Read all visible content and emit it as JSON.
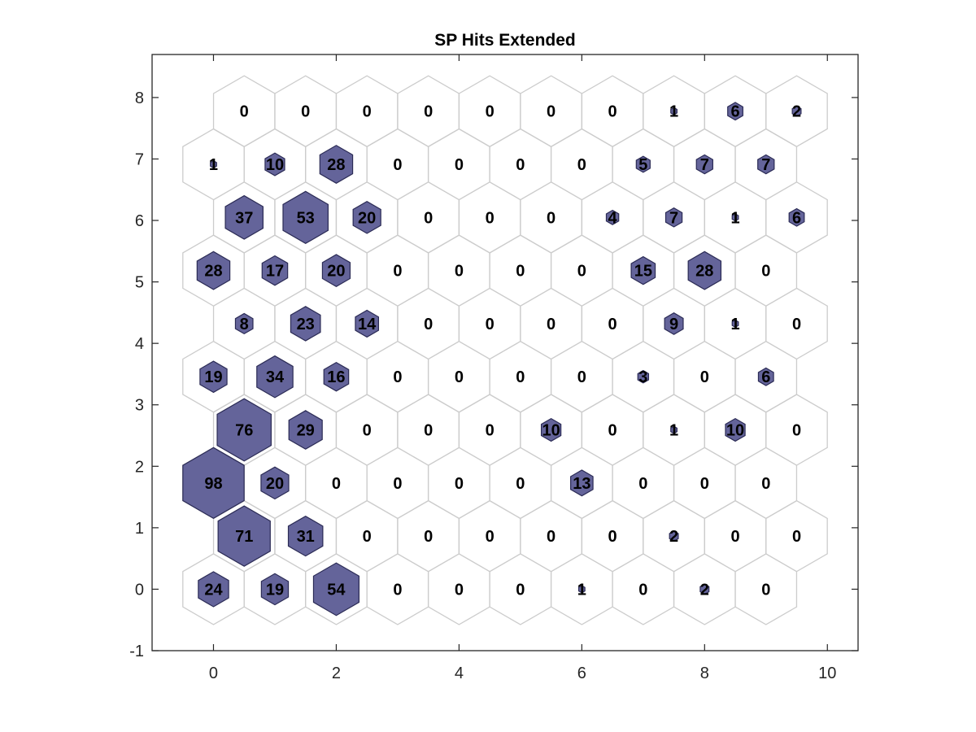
{
  "chart_data": {
    "type": "heatmap",
    "title": "SP Hits Extended",
    "xlabel": "",
    "ylabel": "",
    "xlim": [
      -1,
      10.5
    ],
    "ylim": [
      -1,
      8.7
    ],
    "xticks": [
      0,
      2,
      4,
      6,
      8,
      10
    ],
    "yticks": [
      -1,
      0,
      1,
      2,
      3,
      4,
      5,
      6,
      7,
      8
    ],
    "grid": false,
    "colors": {
      "hit_fill": "#64649a",
      "hit_edge": "#2b2b55",
      "cell_edge": "#cccccc",
      "axis": "#262626"
    },
    "max_hits": 98,
    "grid_rows": [
      {
        "y": 0,
        "offset": 0,
        "hits": [
          24,
          19,
          54,
          0,
          0,
          0,
          1,
          0,
          2,
          0
        ]
      },
      {
        "y": 1,
        "offset": 0.5,
        "hits": [
          71,
          31,
          0,
          0,
          0,
          0,
          0,
          2,
          0,
          0
        ]
      },
      {
        "y": 2,
        "offset": 0,
        "hits": [
          98,
          20,
          0,
          0,
          0,
          0,
          13,
          0,
          0,
          0
        ]
      },
      {
        "y": 3,
        "offset": 0.5,
        "hits": [
          76,
          29,
          0,
          0,
          0,
          10,
          0,
          1,
          10,
          0
        ]
      },
      {
        "y": 4,
        "offset": 0,
        "hits": [
          19,
          34,
          16,
          0,
          0,
          0,
          0,
          3,
          0,
          6
        ]
      },
      {
        "y": 5,
        "offset": 0.5,
        "hits": [
          8,
          23,
          14,
          0,
          0,
          0,
          0,
          9,
          1,
          0
        ]
      },
      {
        "y": 6,
        "offset": 0,
        "hits": [
          28,
          17,
          20,
          0,
          0,
          0,
          0,
          15,
          28,
          0
        ]
      },
      {
        "y": 7,
        "offset": 0.5,
        "hits": [
          37,
          53,
          20,
          0,
          0,
          0,
          4,
          7,
          1,
          6
        ]
      },
      {
        "y": 8,
        "offset": 0,
        "hits": [
          1,
          10,
          28,
          0,
          0,
          0,
          0,
          5,
          7,
          7
        ]
      },
      {
        "y": 9,
        "offset": 0.5,
        "hits": [
          0,
          0,
          0,
          0,
          0,
          0,
          0,
          1,
          6,
          2
        ]
      }
    ]
  }
}
